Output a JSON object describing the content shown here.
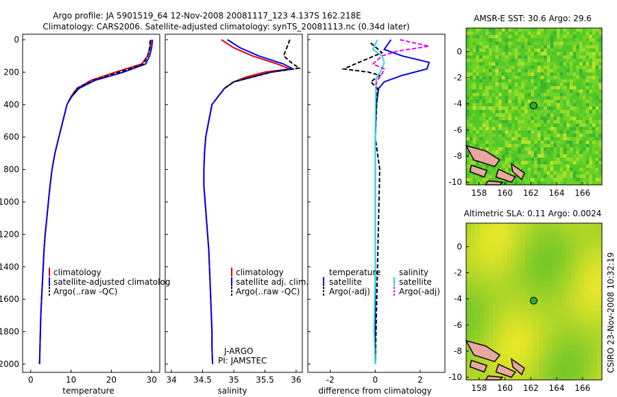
{
  "title": {
    "line1": "Argo profile: JA 5901519_64 12-Nov-2008 20081117_123 4.137S 162.218E",
    "line2": "Climatology: CARS2006. Satellite-adjusted climatology: synTS_20081113.nc (0.34d later)"
  },
  "depth_ticks": [
    "0",
    "200",
    "400",
    "600",
    "800",
    "1000",
    "1200",
    "1400",
    "1600",
    "1800",
    "2000"
  ],
  "colors": {
    "climatology": "#dd0000",
    "satellite": "#0000ee",
    "argo": "#000000",
    "cyan": "#22dddd",
    "magenta": "#ee00ee"
  },
  "panels": {
    "temperature": {
      "xlabel": "temperature",
      "xticks": [
        "0",
        "10",
        "20",
        "30"
      ],
      "legend": [
        "climatology",
        "satellite-adjusted climatolog",
        "Argo(..raw -QC)"
      ]
    },
    "salinity": {
      "xlabel": "salinity",
      "xticks": [
        "34",
        "34.5",
        "35",
        "35.5",
        "36"
      ],
      "legend": [
        "climatology",
        "satellite adj. clim.",
        "Argo(..raw -QC)"
      ],
      "note1": "J-ARGO",
      "note2": "PI: JAMSTEC"
    },
    "difference": {
      "xlabel": "difference from climatology",
      "xticks": [
        "-2",
        "0",
        "2"
      ],
      "legend_left_head": "temperature",
      "legend_left": [
        "satellite",
        "Argo(-adj)"
      ],
      "legend_right_head": "salinity",
      "legend_right": [
        "satellite",
        "Argo(-adj)"
      ]
    }
  },
  "maps": {
    "sst": {
      "title": "AMSR-E SST: 30.6 Argo: 29.6"
    },
    "sla": {
      "title": "Altimetric SLA: 0.11 Argo: 0.0024"
    },
    "yticks": [
      "0",
      "-2",
      "-4",
      "-6",
      "-8",
      "-10"
    ],
    "xticks": [
      "158",
      "160",
      "162",
      "164",
      "166"
    ],
    "float_position": {
      "lon": 162.218,
      "lat": -4.137
    }
  },
  "side_label": "CSIRO 23-Nov-2008 10:32:19",
  "chart_data": [
    {
      "type": "line",
      "xlabel": "temperature",
      "ylabel": "",
      "xlim": [
        -2,
        32
      ],
      "ylim": [
        2000,
        0
      ],
      "series": [
        {
          "name": "climatology",
          "points": [
            [
              29.8,
              0
            ],
            [
              29.6,
              50
            ],
            [
              29.0,
              100
            ],
            [
              27.5,
              150
            ],
            [
              21,
              200
            ],
            [
              15,
              250
            ],
            [
              11.5,
              300
            ],
            [
              10,
              350
            ],
            [
              9,
              400
            ],
            [
              8,
              500
            ],
            [
              7,
              600
            ],
            [
              6,
              700
            ],
            [
              5.3,
              800
            ],
            [
              4.8,
              900
            ],
            [
              4.4,
              1000
            ],
            [
              4,
              1100
            ],
            [
              3.6,
              1200
            ],
            [
              3.3,
              1300
            ],
            [
              3.1,
              1400
            ],
            [
              2.9,
              1500
            ],
            [
              2.7,
              1600
            ],
            [
              2.5,
              1700
            ],
            [
              2.4,
              1800
            ],
            [
              2.3,
              1900
            ],
            [
              2.2,
              2000
            ]
          ]
        },
        {
          "name": "satellite-adjusted climatolog",
          "points": [
            [
              30.2,
              0
            ],
            [
              30.0,
              50
            ],
            [
              29.5,
              100
            ],
            [
              28.5,
              150
            ],
            [
              23,
              200
            ],
            [
              16,
              250
            ],
            [
              12,
              300
            ],
            [
              10.2,
              350
            ],
            [
              9,
              400
            ],
            [
              8,
              500
            ],
            [
              7,
              600
            ],
            [
              6,
              700
            ],
            [
              5.3,
              800
            ],
            [
              4.8,
              900
            ],
            [
              4.4,
              1000
            ],
            [
              4,
              1100
            ],
            [
              3.6,
              1200
            ],
            [
              3.3,
              1300
            ],
            [
              3.1,
              1400
            ],
            [
              2.9,
              1500
            ],
            [
              2.7,
              1600
            ],
            [
              2.5,
              1700
            ],
            [
              2.4,
              1800
            ],
            [
              2.3,
              1900
            ],
            [
              2.2,
              2000
            ]
          ]
        },
        {
          "name": "Argo(..raw -QC)",
          "points": [
            [
              29.6,
              5
            ],
            [
              29.5,
              50
            ],
            [
              29.0,
              100
            ],
            [
              28,
              150
            ],
            [
              22,
              200
            ],
            [
              15.5,
              250
            ],
            [
              11.5,
              300
            ],
            [
              10.2,
              350
            ]
          ]
        }
      ]
    },
    {
      "type": "line",
      "xlabel": "salinity",
      "ylabel": "",
      "xlim": [
        33.9,
        36.1
      ],
      "ylim": [
        2000,
        0
      ],
      "series": [
        {
          "name": "climatology",
          "points": [
            [
              34.8,
              0
            ],
            [
              35.0,
              50
            ],
            [
              35.3,
              100
            ],
            [
              35.7,
              150
            ],
            [
              35.9,
              180
            ],
            [
              35.5,
              200
            ],
            [
              35.2,
              230
            ],
            [
              35.0,
              260
            ],
            [
              34.85,
              300
            ],
            [
              34.75,
              350
            ],
            [
              34.65,
              400
            ],
            [
              34.6,
              500
            ],
            [
              34.55,
              600
            ],
            [
              34.53,
              700
            ],
            [
              34.52,
              800
            ],
            [
              34.52,
              900
            ],
            [
              34.54,
              1000
            ],
            [
              34.56,
              1100
            ],
            [
              34.58,
              1200
            ],
            [
              34.6,
              1300
            ],
            [
              34.61,
              1400
            ],
            [
              34.62,
              1500
            ],
            [
              34.63,
              1600
            ],
            [
              34.64,
              1700
            ],
            [
              34.65,
              1800
            ],
            [
              34.65,
              1900
            ],
            [
              34.66,
              2000
            ]
          ]
        },
        {
          "name": "satellite adj. clim.",
          "points": [
            [
              34.9,
              0
            ],
            [
              35.1,
              50
            ],
            [
              35.4,
              100
            ],
            [
              35.8,
              150
            ],
            [
              35.95,
              180
            ],
            [
              35.6,
              200
            ],
            [
              35.3,
              230
            ],
            [
              35.0,
              260
            ],
            [
              34.85,
              300
            ],
            [
              34.75,
              350
            ],
            [
              34.65,
              400
            ],
            [
              34.6,
              500
            ],
            [
              34.55,
              600
            ],
            [
              34.53,
              700
            ],
            [
              34.52,
              800
            ],
            [
              34.52,
              900
            ],
            [
              34.54,
              1000
            ],
            [
              34.56,
              1100
            ],
            [
              34.58,
              1200
            ],
            [
              34.6,
              1300
            ],
            [
              34.61,
              1400
            ],
            [
              34.62,
              1500
            ],
            [
              34.63,
              1600
            ],
            [
              34.64,
              1700
            ],
            [
              34.65,
              1800
            ],
            [
              34.65,
              1900
            ],
            [
              34.66,
              2000
            ]
          ]
        },
        {
          "name": "Argo(..raw -QC)",
          "points": [
            [
              35.9,
              0
            ],
            [
              35.85,
              50
            ],
            [
              35.8,
              100
            ],
            [
              35.95,
              150
            ],
            [
              36.05,
              175
            ],
            [
              35.6,
              200
            ],
            [
              35.3,
              230
            ],
            [
              35.0,
              260
            ],
            [
              34.85,
              300
            ]
          ]
        }
      ]
    },
    {
      "type": "line",
      "xlabel": "difference from climatology",
      "ylabel": "",
      "xlim": [
        -3,
        3.1
      ],
      "ylim": [
        2000,
        0
      ],
      "series": [
        {
          "name": "temperature satellite",
          "points": [
            [
              0.7,
              0
            ],
            [
              0.4,
              60
            ],
            [
              1.2,
              100
            ],
            [
              2.4,
              140
            ],
            [
              2.3,
              180
            ],
            [
              1.2,
              220
            ],
            [
              0.4,
              260
            ],
            [
              0.15,
              300
            ],
            [
              0.05,
              400
            ],
            [
              0,
              600
            ],
            [
              0,
              1000
            ],
            [
              0,
              2000
            ]
          ]
        },
        {
          "name": "temperature Argo(-adj)",
          "points": [
            [
              -0.2,
              20
            ],
            [
              0.3,
              80
            ],
            [
              -0.9,
              150
            ],
            [
              -1.4,
              180
            ],
            [
              -0.3,
              200
            ],
            [
              0.2,
              220
            ],
            [
              -0.2,
              260
            ],
            [
              0.1,
              300
            ],
            [
              0,
              600
            ],
            [
              0.2,
              800
            ],
            [
              0,
              2000
            ]
          ]
        },
        {
          "name": "salinity satellite",
          "points": [
            [
              0.1,
              0
            ],
            [
              -0.1,
              60
            ],
            [
              0.3,
              100
            ],
            [
              0.4,
              140
            ],
            [
              0.3,
              180
            ],
            [
              0.05,
              240
            ],
            [
              0.02,
              350
            ],
            [
              0,
              600
            ],
            [
              0,
              1000
            ],
            [
              0,
              1400
            ],
            [
              -0.05,
              1800
            ],
            [
              0,
              2000
            ]
          ]
        },
        {
          "name": "salinity Argo(-adj)",
          "points": [
            [
              1.1,
              0
            ],
            [
              2.4,
              40
            ],
            [
              1.0,
              70
            ],
            [
              0.3,
              100
            ],
            [
              -0.1,
              150
            ],
            [
              0.4,
              180
            ],
            [
              0.3,
              210
            ],
            [
              0.05,
              260
            ],
            [
              0.02,
              300
            ]
          ]
        }
      ]
    }
  ]
}
